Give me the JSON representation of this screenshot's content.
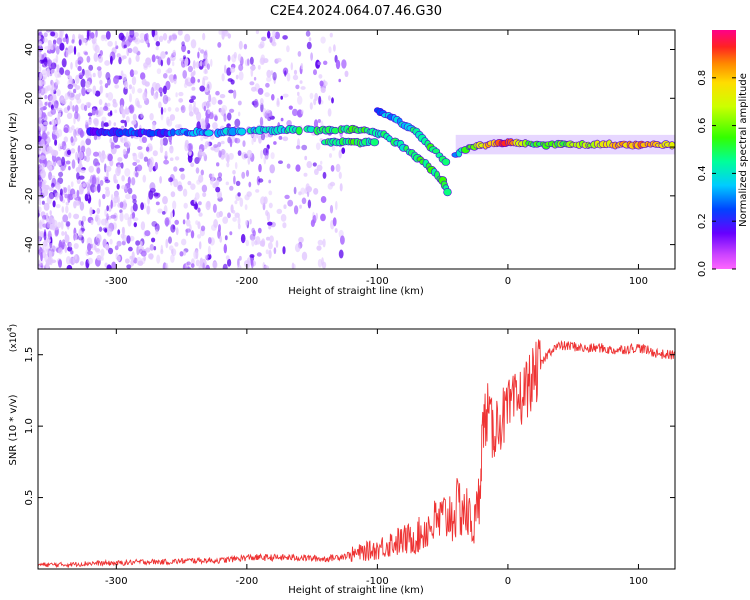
{
  "title": "C2E4.2024.064.07.46.G30",
  "chart_data": [
    {
      "type": "heatmap",
      "xlabel": "Height of straight line (km)",
      "ylabel": "Frequency (Hz)",
      "xlim": [
        -360,
        128
      ],
      "ylim": [
        -50,
        48
      ],
      "xticks": [
        -300,
        -200,
        -100,
        0,
        100
      ],
      "yticks": [
        -40,
        -20,
        0,
        20,
        40
      ],
      "colorbar": {
        "label": "Normalized spectral amplitude",
        "range": [
          0,
          1
        ],
        "ticks": [
          "0.0",
          "0.2",
          "0.4",
          "0.6",
          "0.8"
        ],
        "tick_values": [
          0,
          0.2,
          0.4,
          0.6,
          0.8
        ]
      },
      "features": {
        "main_band": [
          {
            "x": -320,
            "y": 6,
            "amp": 0.15
          },
          {
            "x": -300,
            "y": 6,
            "amp": 0.25
          },
          {
            "x": -270,
            "y": 6,
            "amp": 0.2
          },
          {
            "x": -250,
            "y": 6,
            "amp": 0.3
          },
          {
            "x": -220,
            "y": 6,
            "amp": 0.35
          },
          {
            "x": -190,
            "y": 7,
            "amp": 0.4
          },
          {
            "x": -160,
            "y": 7,
            "amp": 0.45
          },
          {
            "x": -130,
            "y": 7,
            "amp": 0.5
          },
          {
            "x": -110,
            "y": 7,
            "amp": 0.5
          },
          {
            "x": -95,
            "y": 5,
            "amp": 0.45
          },
          {
            "x": -80,
            "y": 0,
            "amp": 0.45
          },
          {
            "x": -65,
            "y": -6,
            "amp": 0.5
          },
          {
            "x": -50,
            "y": -14,
            "amp": 0.5
          },
          {
            "x": -45,
            "y": -20,
            "amp": 0.4
          }
        ],
        "upper_branch": [
          {
            "x": -100,
            "y": 15,
            "amp": 0.3
          },
          {
            "x": -85,
            "y": 11,
            "amp": 0.35
          },
          {
            "x": -70,
            "y": 6,
            "amp": 0.45
          },
          {
            "x": -55,
            "y": -2,
            "amp": 0.5
          },
          {
            "x": -45,
            "y": -8,
            "amp": 0.4
          }
        ],
        "lower_branch": [
          {
            "x": -140,
            "y": 2,
            "amp": 0.45
          },
          {
            "x": -120,
            "y": 2,
            "amp": 0.5
          },
          {
            "x": -100,
            "y": 2,
            "amp": 0.45
          }
        ],
        "steady_band": [
          {
            "x": -40,
            "y": -3,
            "amp": 0.35
          },
          {
            "x": -30,
            "y": 0,
            "amp": 0.55
          },
          {
            "x": -15,
            "y": 1,
            "amp": 0.8
          },
          {
            "x": 0,
            "y": 2,
            "amp": 0.9
          },
          {
            "x": 20,
            "y": 1,
            "amp": 0.5
          },
          {
            "x": 50,
            "y": 1,
            "amp": 0.6
          },
          {
            "x": 80,
            "y": 1,
            "amp": 0.75
          },
          {
            "x": 100,
            "y": 1,
            "amp": 0.85
          },
          {
            "x": 128,
            "y": 1,
            "amp": 0.7
          }
        ]
      }
    },
    {
      "type": "line",
      "xlabel": "Height of straight line (km)",
      "ylabel": "SNR (10 * v/v)",
      "yscale_label": "(x10",
      "yscale_exp": "4",
      "yscale_close": ")",
      "xlim": [
        -360,
        128
      ],
      "ylim": [
        0.0,
        1.68
      ],
      "xticks": [
        -300,
        -200,
        -100,
        0,
        100
      ],
      "yticks": [
        0.5,
        1.0,
        1.5
      ],
      "series": [
        {
          "color": "#ee3333",
          "x": [
            -360,
            -340,
            -320,
            -300,
            -280,
            -260,
            -240,
            -220,
            -200,
            -180,
            -160,
            -140,
            -120,
            -110,
            -100,
            -90,
            -80,
            -70,
            -60,
            -50,
            -45,
            -40,
            -35,
            -30,
            -25,
            -22,
            -20,
            -18,
            -15,
            -12,
            -10,
            -5,
            0,
            5,
            10,
            15,
            20,
            25,
            30,
            35,
            40,
            50,
            60,
            70,
            80,
            90,
            100,
            110,
            120,
            128
          ],
          "y": [
            0.03,
            0.03,
            0.04,
            0.04,
            0.05,
            0.05,
            0.06,
            0.06,
            0.08,
            0.08,
            0.08,
            0.07,
            0.1,
            0.12,
            0.14,
            0.18,
            0.2,
            0.22,
            0.3,
            0.35,
            0.38,
            0.4,
            0.45,
            0.35,
            0.3,
            0.5,
            0.9,
            1.05,
            1.1,
            0.95,
            1.0,
            1.05,
            1.1,
            1.15,
            1.2,
            1.28,
            1.35,
            1.42,
            1.5,
            1.55,
            1.56,
            1.56,
            1.54,
            1.55,
            1.53,
            1.54,
            1.55,
            1.52,
            1.5,
            1.5
          ]
        }
      ]
    }
  ]
}
